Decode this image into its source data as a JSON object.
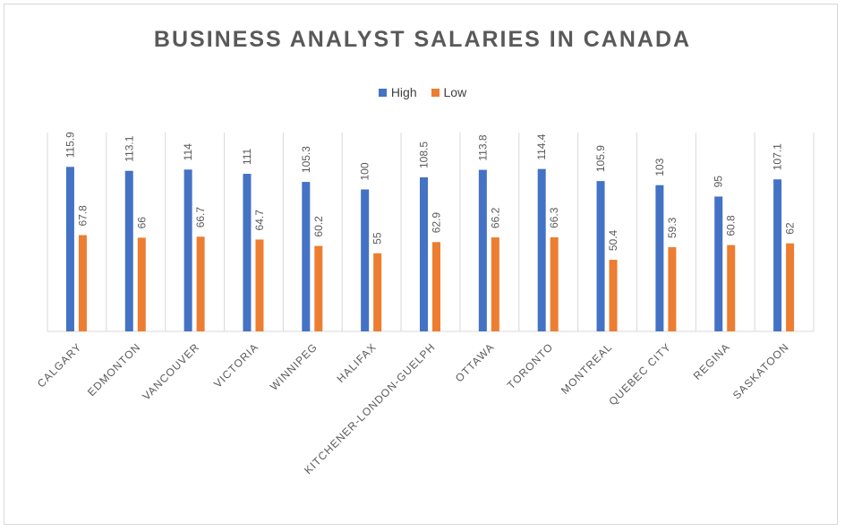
{
  "chart_data": {
    "type": "bar",
    "title": "BUSINESS ANALYST SALARIES IN CANADA",
    "categories": [
      "CALGARY",
      "EDMONTON",
      "VANCOUVER",
      "VICTORIA",
      "WINNIPEG",
      "HALIFAX",
      "KITCHENER-LONDON-GUELPH",
      "OTTAWA",
      "TORONTO",
      "MONTREAL",
      "QUEBEC CITY",
      "REGINA",
      "SASKATOON"
    ],
    "series": [
      {
        "name": "High",
        "color": "#4472c4",
        "values": [
          115.9,
          113.1,
          114,
          111,
          105.3,
          100,
          108.5,
          113.8,
          114.4,
          105.9,
          103,
          95,
          107.1
        ]
      },
      {
        "name": "Low",
        "color": "#ed7d31",
        "values": [
          67.8,
          66,
          66.7,
          64.7,
          60.2,
          55,
          62.9,
          66.2,
          66.3,
          50.4,
          59.3,
          60.8,
          62
        ]
      }
    ],
    "data_labels": true,
    "legend_position": "top",
    "grid": "vertical category separators"
  }
}
